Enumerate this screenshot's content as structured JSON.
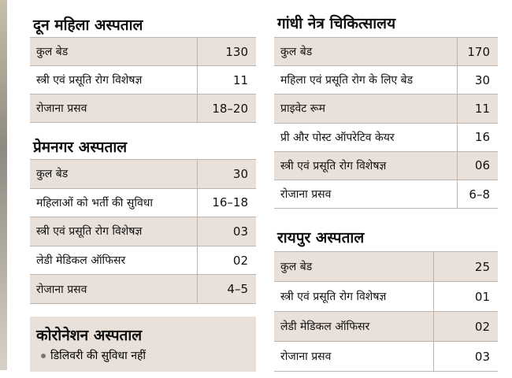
{
  "sections": [
    {
      "title": "दून महिला अस्पताल",
      "rows": [
        [
          "कुल बेड",
          "130"
        ],
        [
          "स्त्री एवं प्रसूति रोग विशेषज्ञ",
          "11"
        ],
        [
          "रोजाना प्रसव",
          "18–20"
        ]
      ]
    },
    {
      "title": "प्रेमनगर अस्पताल",
      "rows": [
        [
          "कुल बेड",
          "30"
        ],
        [
          "महिलाओं को भर्ती की सुविधा",
          "16–18"
        ],
        [
          "स्त्री एवं प्रसूति रोग विशेषज्ञ",
          "03"
        ],
        [
          "लेडी मेडिकल ऑफिसर",
          "02"
        ],
        [
          "रोजाना प्रसव",
          "4–5"
        ]
      ]
    },
    {
      "title": "गांधी नेत्र चिकित्सालय",
      "rows": [
        [
          "कुल बेड",
          "170"
        ],
        [
          "महिला एवं प्रसूति रोग के लिए बेड",
          "30"
        ],
        [
          "प्राइवेट रूम",
          "11"
        ],
        [
          "प्री और पोस्ट ऑपरेटिव केयर",
          "16"
        ],
        [
          "स्त्री एवं प्रसूति रोग विशेषज्ञ",
          "06"
        ],
        [
          "रोजाना प्रसव",
          "6–8"
        ]
      ]
    },
    {
      "title": "रायपुर अस्पताल",
      "rows": [
        [
          "कुल बेड",
          "25"
        ],
        [
          "स्त्री एवं प्रसूति रोग विशेषज्ञ",
          "01"
        ],
        [
          "लेडी मेडिकल ऑफिसर",
          "02"
        ],
        [
          "रोजाना प्रसव",
          "03"
        ]
      ]
    }
  ],
  "note": {
    "title": "कोरोनेशन अस्पताल",
    "items": [
      "डिलिवरी की सुविधा नहीं"
    ]
  }
}
